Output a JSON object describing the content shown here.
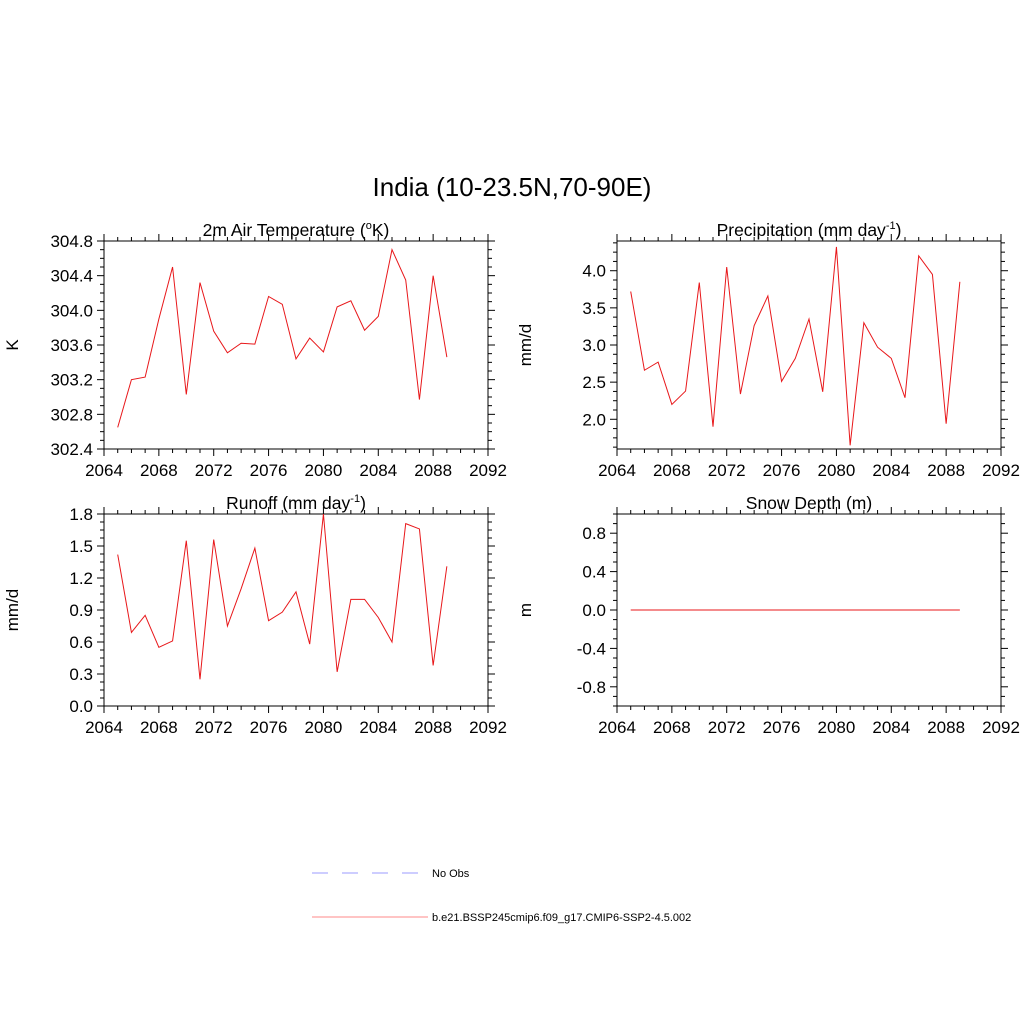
{
  "figure": {
    "title": "India (10-23.5N,70-90E)"
  },
  "colors": {
    "model_line": "#e8171a",
    "obs_line": "#9b9bff",
    "model_legend": "#ff8a8a"
  },
  "legend": {
    "entries": [
      {
        "label": "No Obs",
        "style": "dashed"
      },
      {
        "label": "b.e21.BSSP245cmip6.f09_g17.CMIP6-SSP2-4.5.002",
        "style": "solid"
      }
    ]
  },
  "chart_data": [
    {
      "type": "line",
      "title": "2m Air Temperature (°K)",
      "title_parts": {
        "main": "2m Air Temperature (",
        "sup": "o",
        "end": "K)"
      },
      "xlabel": "",
      "ylabel": "K",
      "xlim": [
        2064,
        2092
      ],
      "ylim": [
        302.4,
        304.8
      ],
      "xticks": [
        "2064",
        "2068",
        "2072",
        "2076",
        "2080",
        "2084",
        "2088",
        "2092"
      ],
      "yticks": [
        "302.4",
        "302.8",
        "303.2",
        "303.6",
        "304.0",
        "304.4",
        "304.8"
      ],
      "x": [
        2065,
        2066,
        2067,
        2068,
        2069,
        2070,
        2071,
        2072,
        2073,
        2074,
        2075,
        2076,
        2077,
        2078,
        2079,
        2080,
        2081,
        2082,
        2083,
        2084,
        2085,
        2086,
        2087,
        2088,
        2089
      ],
      "series": [
        {
          "values": [
            302.65,
            303.2,
            303.23,
            303.9,
            304.5,
            303.03,
            304.32,
            303.76,
            303.51,
            303.62,
            303.61,
            304.16,
            304.07,
            303.44,
            303.68,
            303.52,
            304.04,
            304.11,
            303.77,
            303.93,
            304.7,
            304.35,
            302.97,
            304.4,
            303.46
          ]
        }
      ]
    },
    {
      "type": "line",
      "title": "Precipitation (mm day-1)",
      "title_parts": {
        "main": "Precipitation (mm day",
        "sup": "-1",
        "end": ")"
      },
      "xlabel": "",
      "ylabel": "mm/d",
      "xlim": [
        2064,
        2092
      ],
      "ylim": [
        1.6,
        4.4
      ],
      "xticks": [
        "2064",
        "2068",
        "2072",
        "2076",
        "2080",
        "2084",
        "2088",
        "2092"
      ],
      "yticks": [
        "2.0",
        "2.5",
        "3.0",
        "3.5",
        "4.0"
      ],
      "ytick_values": [
        2.0,
        2.5,
        3.0,
        3.5,
        4.0
      ],
      "x": [
        2065,
        2066,
        2067,
        2068,
        2069,
        2070,
        2071,
        2072,
        2073,
        2074,
        2075,
        2076,
        2077,
        2078,
        2079,
        2080,
        2081,
        2082,
        2083,
        2084,
        2085,
        2086,
        2087,
        2088,
        2089
      ],
      "series": [
        {
          "values": [
            3.72,
            2.66,
            2.77,
            2.2,
            2.38,
            3.84,
            1.9,
            4.05,
            2.34,
            3.26,
            3.66,
            2.51,
            2.82,
            3.35,
            2.37,
            4.32,
            1.65,
            3.3,
            2.97,
            2.82,
            2.29,
            4.2,
            3.95,
            1.94,
            3.85
          ]
        }
      ]
    },
    {
      "type": "line",
      "title": "Runoff (mm day-1)",
      "title_parts": {
        "main": "Runoff (mm day",
        "sup": "-1",
        "end": ")"
      },
      "xlabel": "",
      "ylabel": "mm/d",
      "xlim": [
        2064,
        2092
      ],
      "ylim": [
        0.0,
        1.8
      ],
      "xticks": [
        "2064",
        "2068",
        "2072",
        "2076",
        "2080",
        "2084",
        "2088",
        "2092"
      ],
      "yticks": [
        "0.0",
        "0.3",
        "0.6",
        "0.9",
        "1.2",
        "1.5",
        "1.8"
      ],
      "x": [
        2065,
        2066,
        2067,
        2068,
        2069,
        2070,
        2071,
        2072,
        2073,
        2074,
        2075,
        2076,
        2077,
        2078,
        2079,
        2080,
        2081,
        2082,
        2083,
        2084,
        2085,
        2086,
        2087,
        2088,
        2089
      ],
      "series": [
        {
          "values": [
            1.42,
            0.69,
            0.85,
            0.55,
            0.61,
            1.55,
            0.25,
            1.56,
            0.75,
            1.1,
            1.48,
            0.8,
            0.88,
            1.07,
            0.58,
            1.8,
            0.32,
            1.0,
            1.0,
            0.83,
            0.6,
            1.71,
            1.66,
            0.38,
            1.31
          ]
        }
      ]
    },
    {
      "type": "line",
      "title": "Snow Depth (m)",
      "title_parts": {
        "main": "Snow Depth (m)",
        "sup": "",
        "end": ""
      },
      "xlabel": "",
      "ylabel": "m",
      "xlim": [
        2064,
        2092
      ],
      "ylim": [
        -1.0,
        1.0
      ],
      "xticks": [
        "2064",
        "2068",
        "2072",
        "2076",
        "2080",
        "2084",
        "2088",
        "2092"
      ],
      "yticks": [
        "-0.8",
        "-0.4",
        "0.0",
        "0.4",
        "0.8"
      ],
      "ytick_values": [
        -0.8,
        -0.4,
        0.0,
        0.4,
        0.8
      ],
      "x": [
        2065,
        2066,
        2067,
        2068,
        2069,
        2070,
        2071,
        2072,
        2073,
        2074,
        2075,
        2076,
        2077,
        2078,
        2079,
        2080,
        2081,
        2082,
        2083,
        2084,
        2085,
        2086,
        2087,
        2088,
        2089
      ],
      "series": [
        {
          "values": [
            0,
            0,
            0,
            0,
            0,
            0,
            0,
            0,
            0,
            0,
            0,
            0,
            0,
            0,
            0,
            0,
            0,
            0,
            0,
            0,
            0,
            0,
            0,
            0,
            0
          ]
        }
      ]
    }
  ]
}
